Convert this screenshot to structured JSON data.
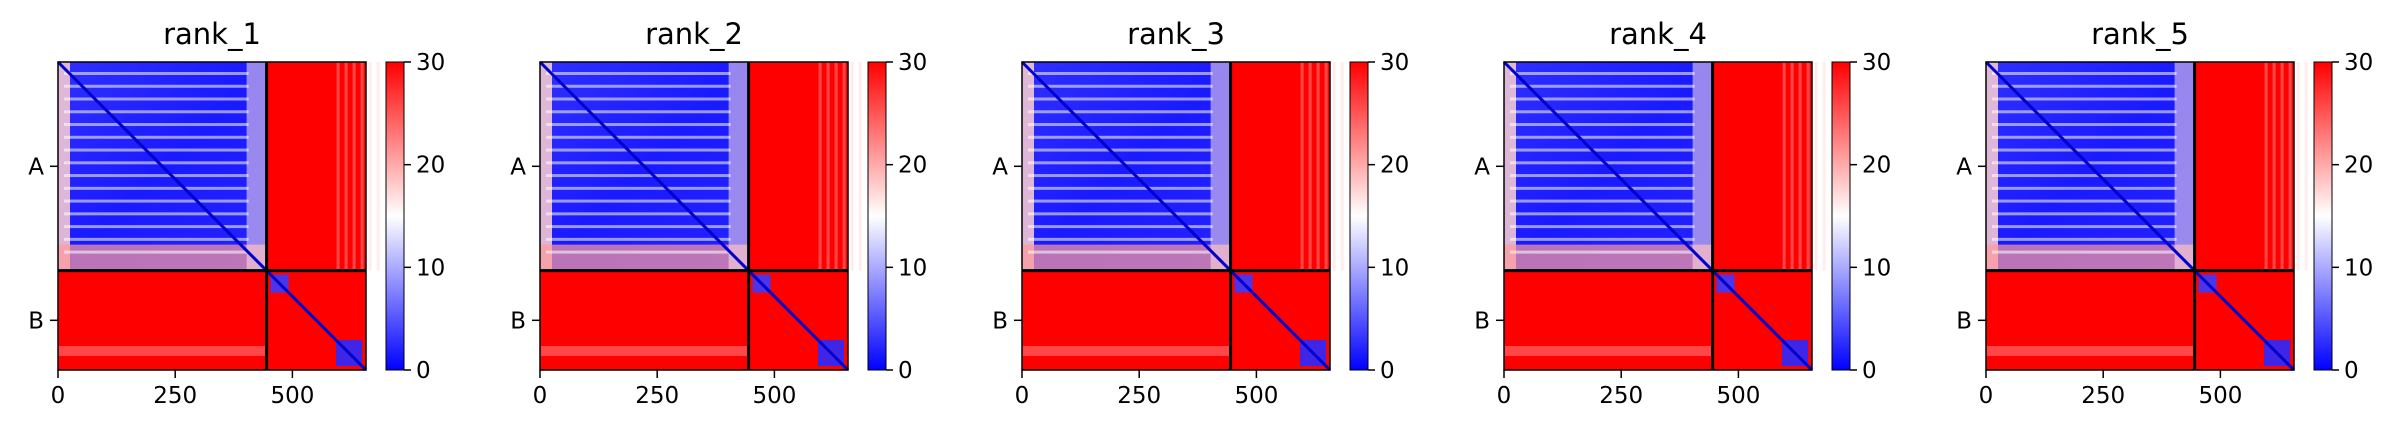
{
  "figure": {
    "caption": ""
  },
  "colors": {
    "low": "#0000ff",
    "mid": "#ffffff",
    "high": "#ff0000",
    "divider": "#000000"
  },
  "chart_data": [
    {
      "type": "heatmap",
      "title": "rank_1",
      "xlabel": "",
      "ylabel": "",
      "x_ticks": [
        0,
        250,
        500
      ],
      "xlim": [
        0,
        657
      ],
      "chain_labels": [
        "A",
        "B"
      ],
      "chain_boundary": 445,
      "colorbar": {
        "min": 0,
        "max": 30,
        "ticks": [
          0,
          10,
          20,
          30
        ]
      },
      "colormap": "bwr"
    },
    {
      "type": "heatmap",
      "title": "rank_2",
      "xlabel": "",
      "ylabel": "",
      "x_ticks": [
        0,
        250,
        500
      ],
      "xlim": [
        0,
        657
      ],
      "chain_labels": [
        "A",
        "B"
      ],
      "chain_boundary": 445,
      "colorbar": {
        "min": 0,
        "max": 30,
        "ticks": [
          0,
          10,
          20,
          30
        ]
      },
      "colormap": "bwr"
    },
    {
      "type": "heatmap",
      "title": "rank_3",
      "xlabel": "",
      "ylabel": "",
      "x_ticks": [
        0,
        250,
        500
      ],
      "xlim": [
        0,
        657
      ],
      "chain_labels": [
        "A",
        "B"
      ],
      "chain_boundary": 445,
      "colorbar": {
        "min": 0,
        "max": 30,
        "ticks": [
          0,
          10,
          20,
          30
        ]
      },
      "colormap": "bwr"
    },
    {
      "type": "heatmap",
      "title": "rank_4",
      "xlabel": "",
      "ylabel": "",
      "x_ticks": [
        0,
        250,
        500
      ],
      "xlim": [
        0,
        657
      ],
      "chain_labels": [
        "A",
        "B"
      ],
      "chain_boundary": 445,
      "colorbar": {
        "min": 0,
        "max": 30,
        "ticks": [
          0,
          10,
          20,
          30
        ]
      },
      "colormap": "bwr"
    },
    {
      "type": "heatmap",
      "title": "rank_5",
      "xlabel": "",
      "ylabel": "",
      "x_ticks": [
        0,
        250,
        500
      ],
      "xlim": [
        0,
        657
      ],
      "chain_labels": [
        "A",
        "B"
      ],
      "chain_boundary": 445,
      "colorbar": {
        "min": 0,
        "max": 30,
        "ticks": [
          0,
          10,
          20,
          30
        ]
      },
      "colormap": "bwr"
    }
  ]
}
